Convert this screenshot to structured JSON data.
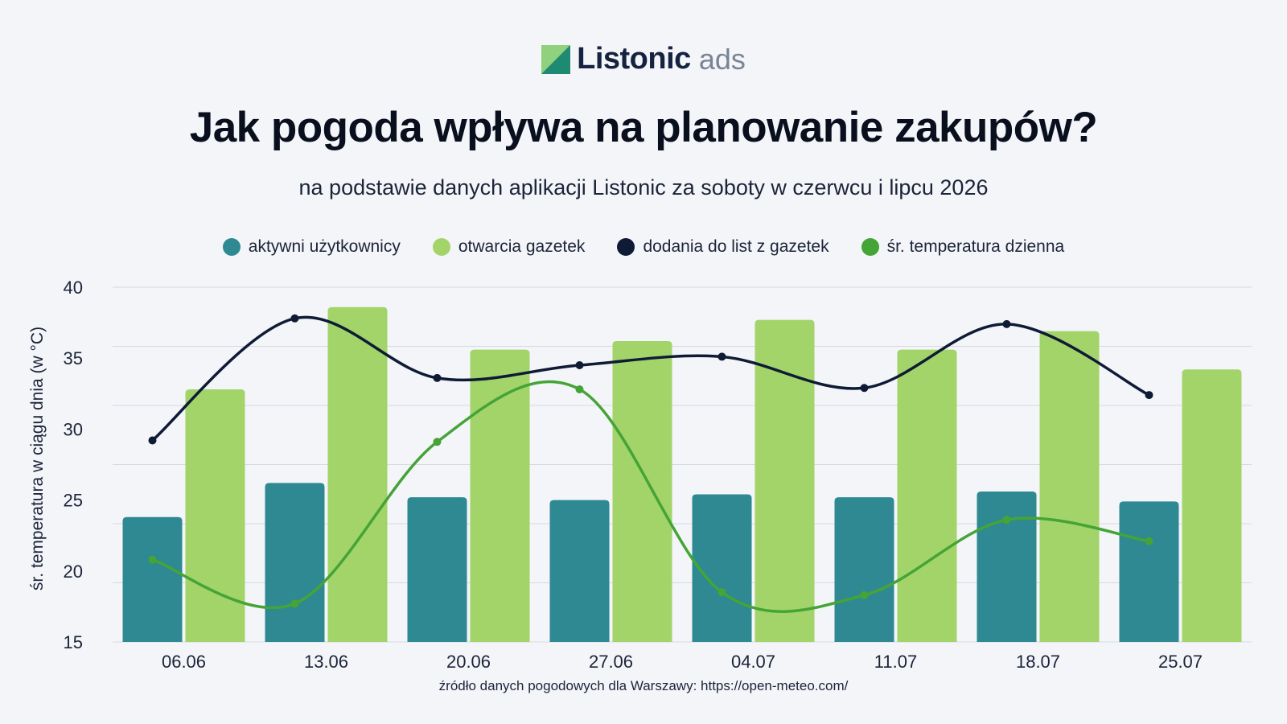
{
  "brand": {
    "name": "Listonic",
    "suffix": "ads"
  },
  "title": "Jak pogoda wpływa na planowanie zakupów?",
  "subtitle": "na podstawie danych aplikacji Listonic za soboty w czerwcu i lipcu 2026",
  "source": "źródło danych pogodowych dla Warszawy: https://open-meteo.com/",
  "chart_data": {
    "type": "bar",
    "categories": [
      "06.06",
      "13.06",
      "20.06",
      "27.06",
      "04.07",
      "11.07",
      "18.07",
      "25.07"
    ],
    "ylabel": "śr. temperatura w ciągu dnia (w °C)",
    "ylim": [
      15,
      40
    ],
    "yticks": [
      40,
      35,
      30,
      25,
      20,
      15
    ],
    "grid": true,
    "legend_position": "top",
    "series": [
      {
        "name": "aktywni użytkownicy",
        "kind": "bar",
        "color": "#2e8993",
        "values": [
          23.8,
          26.2,
          25.2,
          25.0,
          25.4,
          25.2,
          25.6,
          24.9
        ]
      },
      {
        "name": "otwarcia gazetek",
        "kind": "bar",
        "color": "#a3d46a",
        "values": [
          32.8,
          38.6,
          35.6,
          36.2,
          37.7,
          35.6,
          36.9,
          34.2
        ]
      },
      {
        "name": "dodania do list z gazetek",
        "kind": "line",
        "color": "#0f1b35",
        "values": [
          29.2,
          37.8,
          33.6,
          34.5,
          35.1,
          32.9,
          37.4,
          32.4
        ]
      },
      {
        "name": "śr. temperatura dzienna",
        "kind": "line",
        "color": "#45a436",
        "values": [
          20.8,
          17.7,
          29.1,
          32.8,
          18.5,
          18.3,
          23.6,
          22.1
        ]
      }
    ]
  }
}
